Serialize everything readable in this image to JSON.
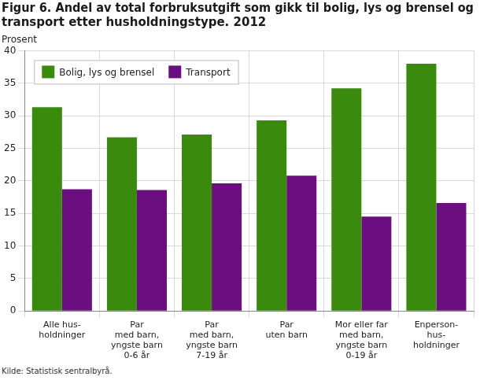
{
  "chart_data": {
    "type": "bar",
    "title": [
      "Figur 6. Andel av total forbruksutgift som gikk til bolig, lys og brensel og",
      "transport etter husholdningstype. 2012"
    ],
    "y_label": "Prosent",
    "source": "Kilde: Statistisk sentralbyrå.",
    "categories": [
      [
        "Alle hus-",
        "holdninger"
      ],
      [
        "Par",
        "med barn,",
        "yngste barn",
        "0-6 år"
      ],
      [
        "Par",
        "med barn,",
        "yngste barn",
        "7-19 år"
      ],
      [
        "Par",
        "uten barn"
      ],
      [
        "Mor eller far",
        "med barn,",
        "yngste barn",
        "0-19 år"
      ],
      [
        "Enperson-",
        "hus-",
        "holdninger"
      ]
    ],
    "series": [
      {
        "name": "Bolig, lys og brensel",
        "color": "#3a8a0e",
        "values": [
          31.3,
          26.7,
          27.1,
          29.3,
          34.2,
          38.0
        ]
      },
      {
        "name": "Transport",
        "color": "#6b0f80",
        "values": [
          18.7,
          18.6,
          19.6,
          20.8,
          14.5,
          16.6
        ]
      }
    ],
    "ylim": [
      0,
      40
    ],
    "yticks": [
      0,
      5,
      10,
      15,
      20,
      25,
      30,
      35,
      40
    ],
    "grid": true,
    "legend": "top-left"
  }
}
